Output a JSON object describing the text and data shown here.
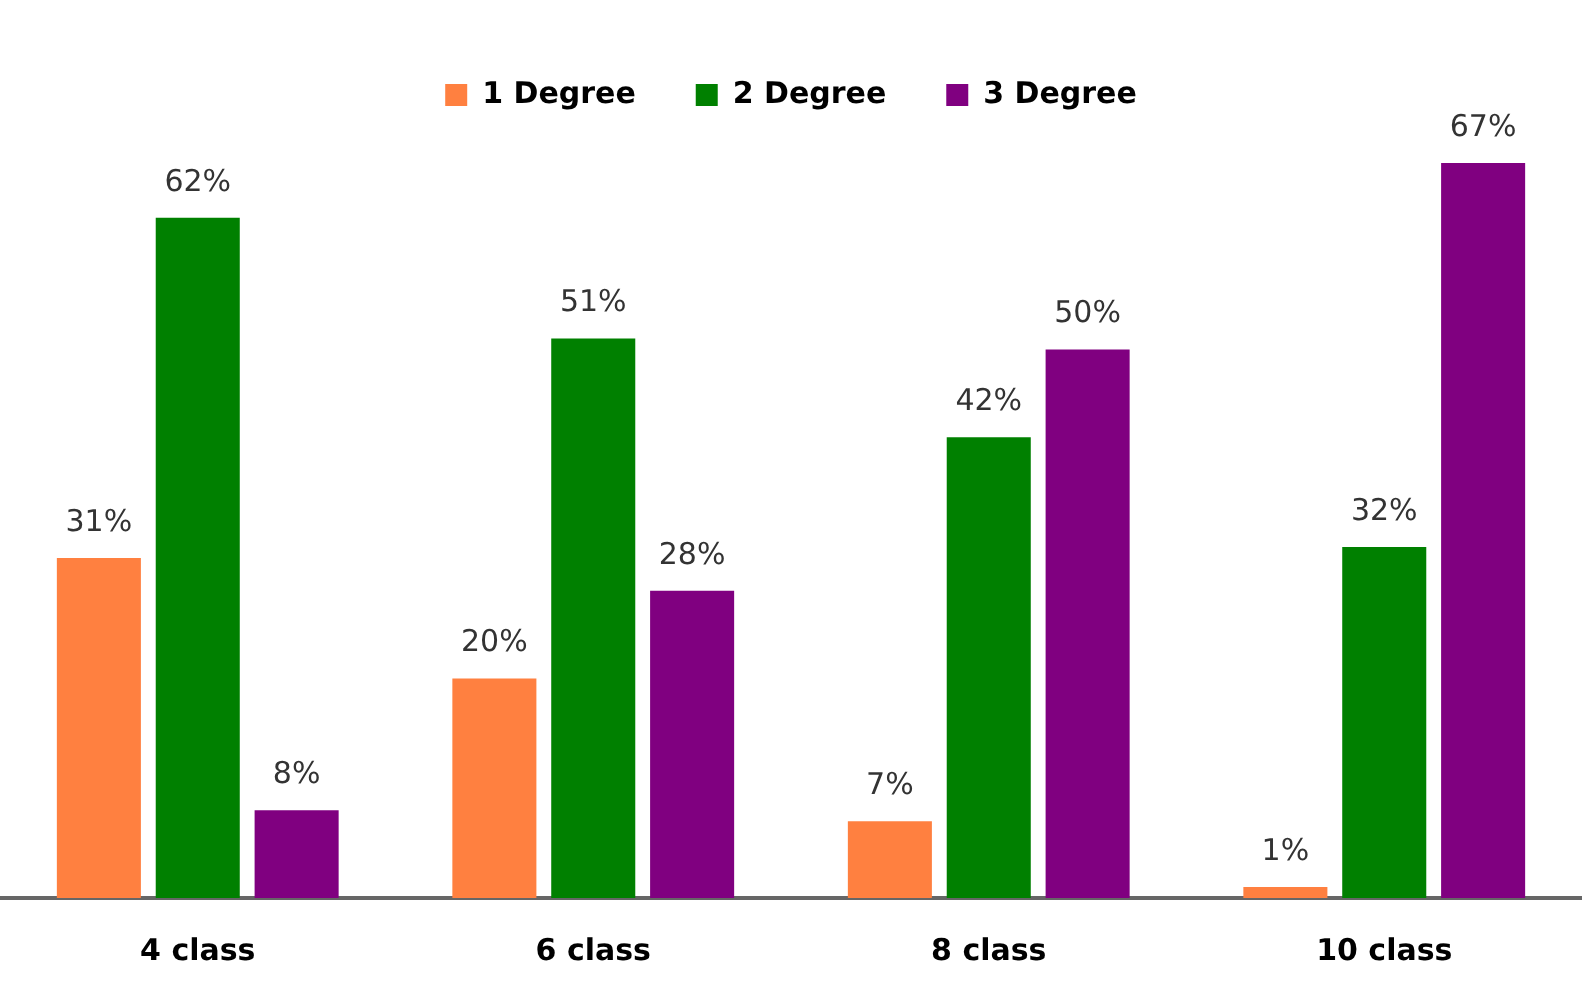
{
  "chart_data": {
    "type": "bar",
    "categories": [
      "4 class",
      "6 class",
      "8 class",
      "10 class"
    ],
    "series": [
      {
        "name": "1 Degree",
        "color": "#ff8040",
        "values": [
          31,
          20,
          7,
          1
        ],
        "value_labels": [
          "31%",
          "20%",
          "7%",
          "1%"
        ]
      },
      {
        "name": "2 Degree",
        "color": "#008000",
        "values": [
          62,
          51,
          42,
          32
        ],
        "value_labels": [
          "62%",
          "51%",
          "42%",
          "32%"
        ]
      },
      {
        "name": "3 Degree",
        "color": "#800080",
        "values": [
          8,
          28,
          50,
          67
        ],
        "value_labels": [
          "8%",
          "28%",
          "50%",
          "67%"
        ]
      }
    ],
    "legend": "top",
    "grid": false
  }
}
